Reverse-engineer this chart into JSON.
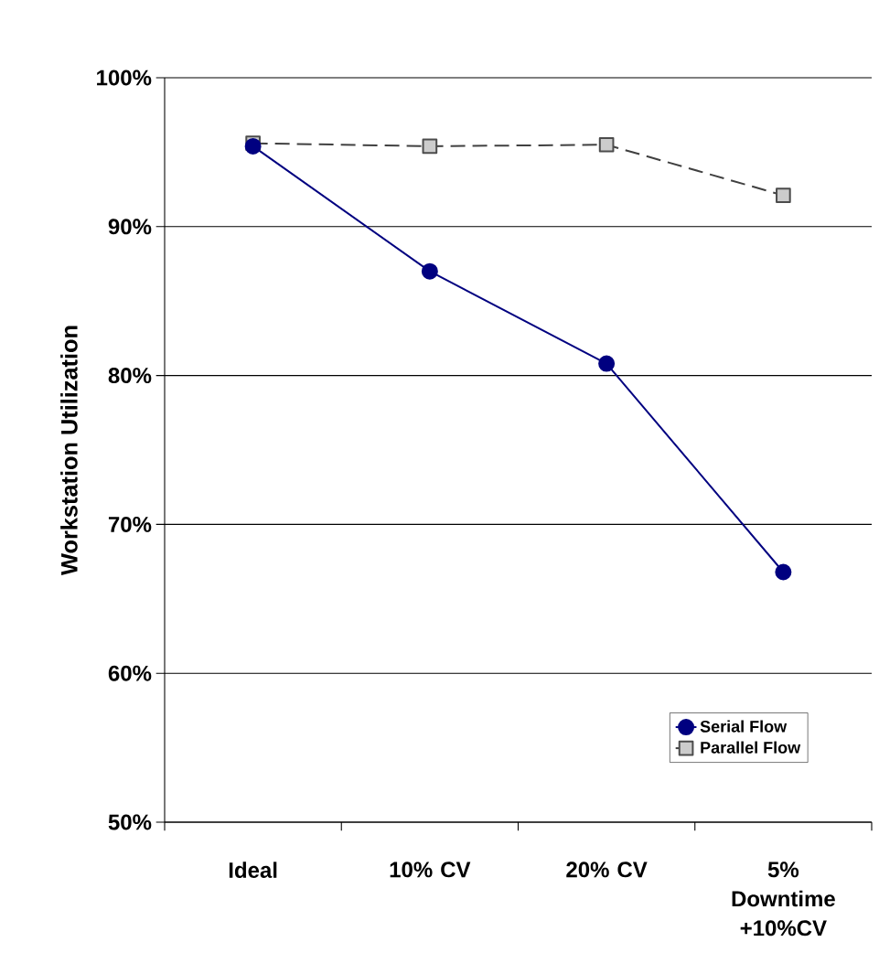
{
  "chart_data": {
    "type": "line",
    "ylabel": "Workstation Utilization",
    "categories": [
      "Ideal",
      "10% CV",
      "20% CV",
      "5% Downtime +10%CV"
    ],
    "series": [
      {
        "name": "Serial Flow",
        "color": "#000080",
        "marker": "circle",
        "line_style": "solid",
        "values": [
          95.4,
          87.0,
          80.8,
          66.8
        ]
      },
      {
        "name": "Parallel Flow",
        "color": "#404040",
        "marker": "square",
        "line_style": "dashed",
        "values": [
          95.6,
          95.4,
          95.5,
          92.1
        ]
      }
    ],
    "ylim": [
      50,
      100
    ],
    "yticks": [
      {
        "value": 50,
        "label": "50%"
      },
      {
        "value": 60,
        "label": "60%"
      },
      {
        "value": 70,
        "label": "70%"
      },
      {
        "value": 80,
        "label": "80%"
      },
      {
        "value": 90,
        "label": "90%"
      },
      {
        "value": 100,
        "label": "100%"
      }
    ],
    "grid": "y",
    "legend": "bottom right"
  }
}
